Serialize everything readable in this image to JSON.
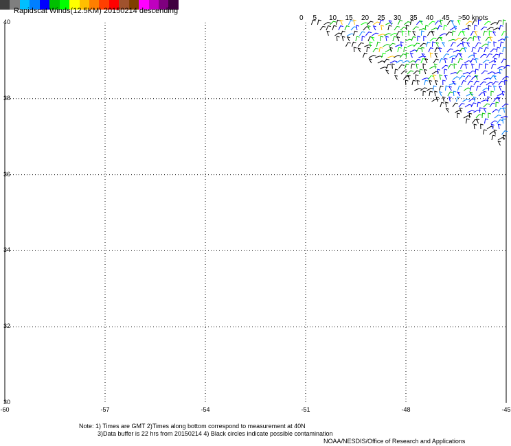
{
  "title": "Rapidscat Winds(12.5KM) 20150214 descending",
  "legend": {
    "colors": [
      "#3f3f3f",
      "#7f7f7f",
      "#00bfff",
      "#007fff",
      "#0000ff",
      "#00bf00",
      "#00ff00",
      "#ffff00",
      "#ffbf00",
      "#ff7f00",
      "#ff3f00",
      "#ff0000",
      "#a0522d",
      "#7f3f00",
      "#ff00ff",
      "#bf00bf",
      "#7f007f",
      "#3f003f"
    ],
    "labels": [
      {
        "text": "0",
        "at": 0
      },
      {
        "text": "5",
        "at": 0.1
      },
      {
        "text": "10",
        "at": 0.2
      },
      {
        "text": "15",
        "at": 0.3
      },
      {
        "text": "20",
        "at": 0.4
      },
      {
        "text": "25",
        "at": 0.5
      },
      {
        "text": "30",
        "at": 0.6
      },
      {
        "text": "35",
        "at": 0.7
      },
      {
        "text": "40",
        "at": 0.8
      },
      {
        "text": "45",
        "at": 0.9
      },
      {
        "text": ">50 knots",
        "at": 1.0
      }
    ]
  },
  "map": {
    "lat_range": [
      30,
      40
    ],
    "lon_range": [
      -60,
      -45
    ],
    "lat_ticks": [
      "40",
      "38",
      "36",
      "34",
      "32",
      "30"
    ],
    "lon_ticks": [
      "-60",
      "-57",
      "-54",
      "-51",
      "-48",
      "-45"
    ],
    "grid": "dotted",
    "wind_swath_region": "top-right triangle (NE corner)"
  },
  "notes": {
    "line1": "Note: 1) Times are GMT 2)Times along bottom correspond to measurement at 40N",
    "line2": "3)Data buffer is 22 hrs from 20150214 4) Black circles indicate possible contamination",
    "credit": "NOAA/NESDIS/Office of Research and Applications"
  }
}
